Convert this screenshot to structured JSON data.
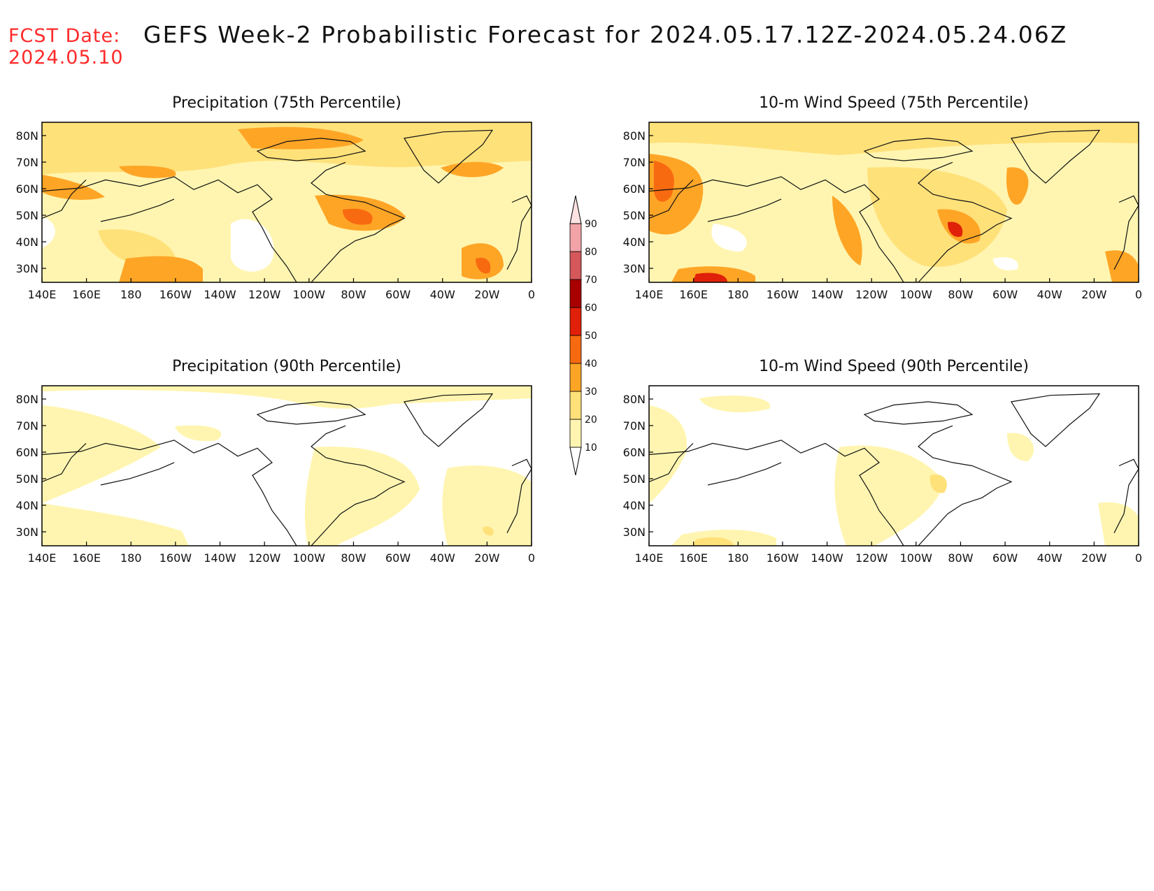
{
  "fcst_date": {
    "label": "FCST Date:",
    "value": "2024.05.10"
  },
  "title": "GEFS Week-2 Probabilistic Forecast for 2024.05.17.12Z-2024.05.24.06Z",
  "panels": [
    {
      "id": "precip75",
      "title": "Precipitation (75th Percentile)"
    },
    {
      "id": "wind75",
      "title": "10-m Wind Speed (75th Percentile)"
    },
    {
      "id": "precip90",
      "title": "Precipitation (90th Percentile)"
    },
    {
      "id": "wind90",
      "title": "10-m Wind Speed (90th Percentile)"
    }
  ],
  "lat_ticks": [
    "80N",
    "70N",
    "60N",
    "50N",
    "40N",
    "30N"
  ],
  "lon_ticks": [
    "140E",
    "160E",
    "180",
    "160W",
    "140W",
    "120W",
    "100W",
    "80W",
    "60W",
    "40W",
    "20W",
    "0"
  ],
  "colorbar": {
    "levels": [
      "10",
      "20",
      "30",
      "40",
      "50",
      "60",
      "70",
      "80",
      "90"
    ],
    "colors": [
      "#fff5b0",
      "#ffe17a",
      "#ffa526",
      "#f86a10",
      "#e02008",
      "#a80000",
      "#d4575a",
      "#f2a3a8",
      "#fde2e2"
    ]
  }
}
